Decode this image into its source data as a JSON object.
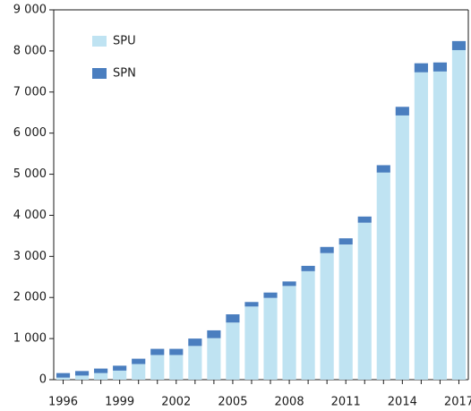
{
  "chart_data": {
    "type": "stacked_bar",
    "categories": [
      "1996",
      null,
      null,
      "1999",
      null,
      null,
      "2002",
      null,
      null,
      "2005",
      null,
      null,
      "2008",
      null,
      null,
      "2011",
      null,
      null,
      "2014",
      null,
      null,
      "2017"
    ],
    "series": [
      {
        "name": "SPU",
        "color": "#bfe3f2",
        "values": [
          50,
          100,
          160,
          220,
          380,
          600,
          600,
          820,
          1010,
          1390,
          1780,
          1990,
          2280,
          2640,
          3080,
          3290,
          3820,
          5040,
          6430,
          7480,
          7500,
          8020
        ]
      },
      {
        "name": "SPN",
        "color": "#4a7ebf",
        "values": [
          110,
          110,
          110,
          120,
          130,
          150,
          150,
          180,
          190,
          200,
          110,
          130,
          110,
          130,
          150,
          150,
          150,
          180,
          210,
          220,
          220,
          220
        ]
      }
    ],
    "ylim": [
      0,
      9000
    ],
    "yticks": [
      0,
      {
        "value": 1000,
        "label": "1 000"
      },
      {
        "value": 2000,
        "label": "2 000"
      },
      {
        "value": 3000,
        "label": "3 000"
      },
      {
        "value": 4000,
        "label": "4 000"
      },
      {
        "value": 5000,
        "label": "5 000"
      },
      {
        "value": 6000,
        "label": "6 000"
      },
      {
        "value": 7000,
        "label": "7 000"
      },
      {
        "value": 8000,
        "label": "8 000"
      },
      {
        "value": 9000,
        "label": "9 000"
      }
    ],
    "legend": "top-left"
  }
}
